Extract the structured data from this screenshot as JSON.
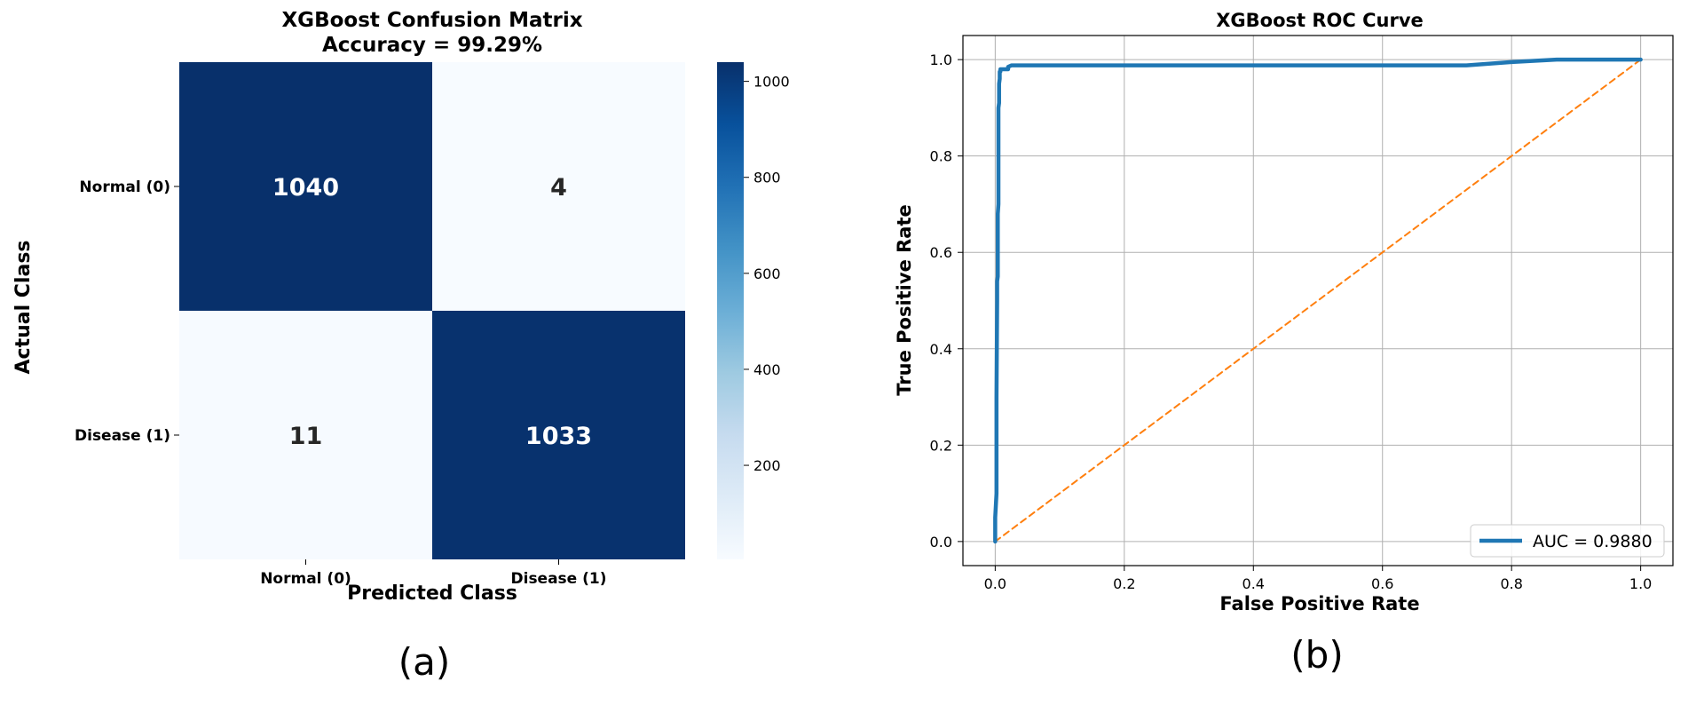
{
  "chart_data": [
    {
      "type": "heatmap",
      "title": "XGBoost Confusion Matrix",
      "subtitle": "Accuracy = 99.29%",
      "xlabel": "Predicted Class",
      "ylabel": "Actual Class",
      "x_categories": [
        "Normal (0)",
        "Disease (1)"
      ],
      "y_categories": [
        "Normal (0)",
        "Disease (1)"
      ],
      "values": [
        [
          1040,
          4
        ],
        [
          11,
          1033
        ]
      ],
      "colorbar": {
        "min": 4,
        "max": 1040,
        "ticks": [
          200,
          400,
          600,
          800,
          1000
        ]
      },
      "colormap": [
        "#f7fbff",
        "#deebf7",
        "#c6dbef",
        "#9ecae1",
        "#6baed6",
        "#4292c6",
        "#2171b5",
        "#08519c",
        "#08306b"
      ],
      "panel_label": "(a)"
    },
    {
      "type": "line",
      "title": "XGBoost ROC Curve",
      "xlabel": "False Positive Rate",
      "ylabel": "True Positive Rate",
      "xlim": [
        -0.05,
        1.05
      ],
      "ylim": [
        -0.05,
        1.05
      ],
      "xticks": [
        0.0,
        0.2,
        0.4,
        0.6,
        0.8,
        1.0
      ],
      "yticks": [
        0.0,
        0.2,
        0.4,
        0.6,
        0.8,
        1.0
      ],
      "grid": true,
      "legend_position": "lower-right",
      "series": [
        {
          "name": "AUC = 0.9880",
          "color": "#1f77b4",
          "x": [
            0.0,
            0.0,
            0.002,
            0.002,
            0.003,
            0.003,
            0.004,
            0.004,
            0.005,
            0.005,
            0.006,
            0.006,
            0.007,
            0.007,
            0.008,
            0.008,
            0.02,
            0.02,
            0.025,
            0.73,
            0.8,
            0.87,
            1.0
          ],
          "y": [
            0.0,
            0.05,
            0.1,
            0.3,
            0.5,
            0.54,
            0.55,
            0.68,
            0.7,
            0.9,
            0.91,
            0.95,
            0.96,
            0.975,
            0.975,
            0.98,
            0.98,
            0.985,
            0.988,
            0.988,
            0.995,
            1.0,
            1.0
          ]
        },
        {
          "name": "",
          "color": "#ff7f0e",
          "dashed": true,
          "x": [
            0.0,
            1.0
          ],
          "y": [
            0.0,
            1.0
          ]
        }
      ],
      "panel_label": "(b)"
    }
  ]
}
